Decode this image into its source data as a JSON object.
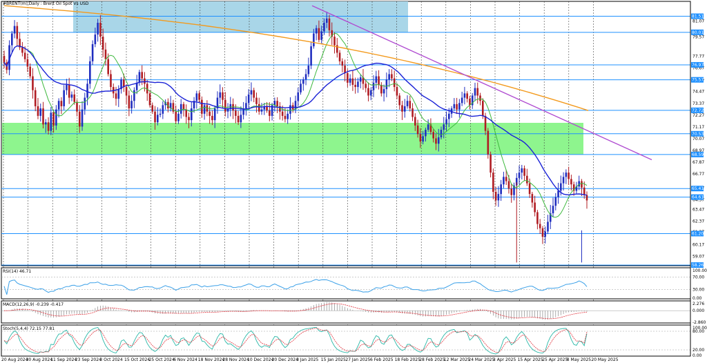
{
  "window": {
    "title": "#BRENT(m),Daily : Brent Oil Spot Vs USD"
  },
  "colors": {
    "bull": "#1f2dbf",
    "bear": "#b01c22",
    "zone_blue": "#a9d6e8",
    "zone_green": "#8ef58e",
    "level": "#1e90ff",
    "ma_fast": "#3cb83c",
    "ma_mid": "#1a22d6",
    "ma_slow": "#f39a1d",
    "trend": "#b04dd1",
    "rsi": "#3aa0e8",
    "macd_signal": "#e0303a",
    "stoch_main": "#2ab8a8",
    "stoch_signal": "#e0303a"
  },
  "chart_data": [
    {
      "type": "candlestick",
      "title": "#BRENT(m),Daily : Brent Oil Spot Vs USD",
      "ylim": [
        58.2,
        82.9
      ],
      "y_ticks": [
        "81.07",
        "79.57",
        "77.77",
        "76.67",
        "75.47",
        "74.47",
        "73.37",
        "72.27",
        "71.17",
        "70.07",
        "68.97",
        "67.87",
        "66.77",
        "65.47",
        "64.37",
        "63.47",
        "62.37",
        "61.37",
        "60.17",
        "59.07"
      ],
      "level_tags": [
        "81.51",
        "80.01",
        "76.97",
        "75.57",
        "72.72",
        "70.53",
        "68.59",
        "65.41",
        "64.61",
        "61.20",
        "58.26"
      ],
      "levels": [
        81.51,
        80.01,
        76.97,
        75.57,
        72.72,
        70.53,
        68.59,
        65.41,
        64.61,
        61.2,
        58.26
      ],
      "zones": [
        {
          "name": "upper",
          "from": 80.01,
          "to": 82.9,
          "start": "2024-09-23",
          "end": "2025-02-13"
        },
        {
          "name": "lower",
          "from": 68.59,
          "to": 71.55,
          "start": "2024-08-20",
          "end": "2025-05-19"
        }
      ],
      "x_ticks": [
        "20 Aug 2024",
        "30 Aug 2024",
        "11 Sep 2024",
        "23 Sep 2024",
        "3 Oct 2024",
        "15 Oct 2024",
        "25 Oct 2024",
        "6 Nov 2024",
        "18 Nov 2024",
        "28 Nov 2024",
        "10 Dec 2024",
        "20 Dec 2024",
        "3 Jan 2025",
        "15 Jan 2025",
        "27 Jan 2025",
        "6 Feb 2025",
        "18 Feb 2025",
        "28 Feb 2025",
        "12 Mar 2025",
        "24 Mar 2025",
        "3 Apr 2025",
        "15 Apr 2025",
        "25 Apr 2025",
        "8 May 2025",
        "20 May 2025"
      ],
      "candles_close": [
        77.2,
        76.5,
        78.8,
        79.9,
        80.6,
        79.4,
        78.6,
        78.1,
        77.5,
        76.8,
        75.9,
        74.6,
        73.1,
        72.2,
        72.9,
        71.4,
        71.6,
        70.8,
        72.5,
        71.3,
        72.8,
        73.6,
        73.1,
        74.6,
        75.1,
        73.9,
        74.2,
        73.5,
        72.6,
        71.2,
        72.8,
        73.9,
        75.2,
        77.3,
        78.9,
        79.8,
        80.9,
        79.6,
        78.4,
        77.5,
        76.1,
        74.9,
        74.3,
        73.8,
        74.7,
        75.6,
        74.9,
        74.1,
        72.9,
        73.6,
        74.6,
        75.3,
        76.3,
        75.7,
        75.2,
        74.3,
        73.2,
        72.6,
        71.6,
        72.3,
        72.4,
        73.2,
        73.5,
        72.9,
        73.4,
        72.6,
        71.7,
        72.4,
        73.3,
        72.8,
        72.1,
        71.8,
        72.9,
        73.6,
        74.3,
        73.7,
        72.4,
        73.2,
        72.6,
        72.2,
        71.8,
        72.9,
        73.9,
        74.4,
        73.7,
        72.6,
        72.9,
        73.3,
        72.7,
        72.2,
        71.6,
        72.3,
        72.9,
        73.4,
        74.2,
        74.6,
        73.9,
        73.3,
        72.6,
        72.8,
        73.1,
        72.7,
        72.2,
        73.2,
        73.6,
        73.1,
        72.6,
        72.2,
        71.9,
        72.4,
        73.2,
        72.8,
        73.6,
        74.4,
        75.2,
        75.6,
        76.1,
        76.9,
        78.7,
        79.9,
        80.4,
        79.3,
        80.1,
        80.9,
        81.3,
        80.2,
        79.6,
        78.8,
        78.1,
        77.3,
        76.9,
        76.2,
        75.3,
        75.7,
        75.1,
        74.9,
        75.4,
        75.8,
        75.2,
        74.8,
        74.1,
        74.6,
        75.3,
        75.9,
        75.1,
        74.3,
        74.7,
        75.6,
        76.1,
        75.7,
        74.9,
        74.1,
        73.2,
        72.6,
        73.1,
        73.6,
        72.9,
        72.1,
        71.3,
        70.5,
        69.8,
        70.3,
        70.9,
        71.4,
        70.7,
        70.1,
        69.6,
        70.2,
        70.9,
        71.4,
        71.9,
        72.4,
        72.9,
        73.3,
        72.8,
        73.4,
        73.9,
        74.3,
        73.8,
        73.2,
        74.1,
        74.8,
        74.1,
        73.6,
        72.2,
        70.8,
        68.6,
        66.9,
        65.1,
        64.3,
        64.9,
        65.8,
        66.5,
        66.1,
        65.4,
        64.8,
        65.7,
        66.4,
        66.9,
        67.3,
        66.6,
        65.9,
        64.9,
        64.1,
        63.2,
        62.1,
        61.7,
        60.9,
        61.4,
        62.3,
        63.1,
        63.8,
        64.6,
        65.2,
        65.9,
        66.5,
        66.9,
        66.3,
        65.8,
        65.2,
        65.6,
        66.1,
        65.5,
        64.8,
        64.3
      ],
      "series": [
        {
          "name": "MA fast"
        },
        {
          "name": "MA mid"
        },
        {
          "name": "MA slow"
        },
        {
          "name": "Trendline"
        }
      ]
    },
    {
      "type": "line",
      "title": "RSI(14) 46.71",
      "ylim": [
        0,
        100
      ],
      "y_ticks": [
        "100.00",
        "70.00",
        "30.00",
        "0.00"
      ],
      "last_value": 46.71
    },
    {
      "type": "line",
      "title": "MACD(12,26,9) -0.239 -0.417",
      "ylim": [
        -2.9,
        2.3
      ],
      "y_ticks": [
        "2.276",
        "0.000",
        "-2.860"
      ],
      "values": [
        -0.239,
        -0.417
      ]
    },
    {
      "type": "line",
      "title": "Stoch(5,4,4) 72.15 77.81",
      "ylim": [
        0,
        100
      ],
      "y_ticks": [
        "100.00",
        "80.00",
        "20.00",
        "0.00"
      ],
      "values": [
        72.15,
        77.81
      ]
    }
  ]
}
